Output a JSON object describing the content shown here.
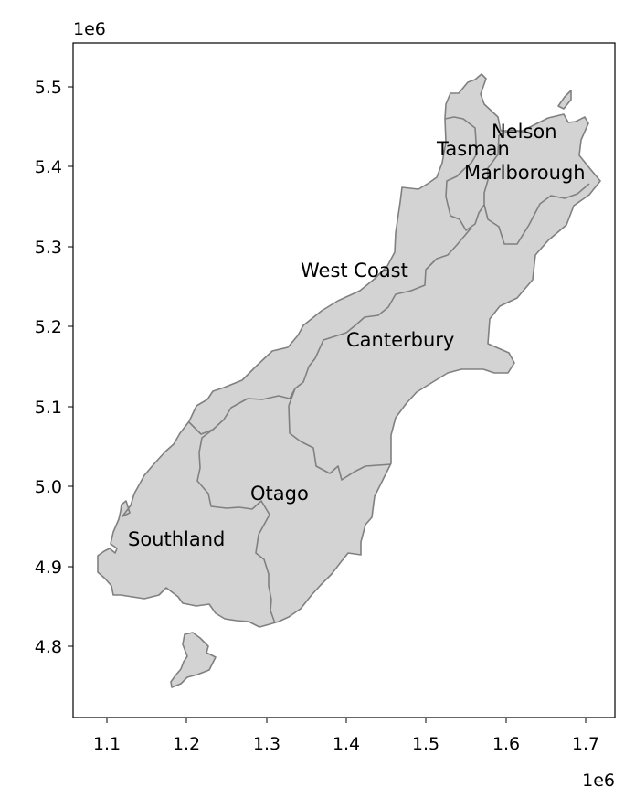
{
  "map": {
    "type": "choropleth-outline",
    "fill_color": "#d3d3d3",
    "edge_color": "#808080",
    "x_offset_label": "1e6",
    "y_offset_label": "1e6",
    "x_ticks": [
      "1.1",
      "1.2",
      "1.3",
      "1.4",
      "1.5",
      "1.6",
      "1.7"
    ],
    "y_ticks": [
      "5.5",
      "5.4",
      "5.3",
      "5.2",
      "5.1",
      "5.0",
      "4.9",
      "4.8"
    ],
    "regions": [
      "Nelson",
      "Tasman",
      "Marlborough",
      "West Coast",
      "Canterbury",
      "Otago",
      "Southland"
    ]
  }
}
